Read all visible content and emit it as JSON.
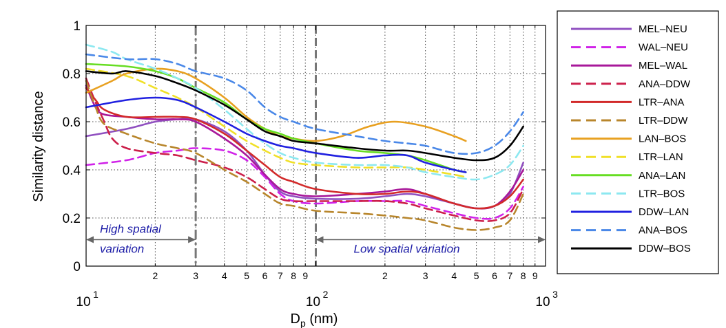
{
  "chart_data": {
    "type": "line",
    "title": "",
    "xlabel": "D_p (nm)",
    "ylabel": "Similarity distance",
    "xscale": "log",
    "xlim": [
      10,
      1000
    ],
    "ylim": [
      0,
      1
    ],
    "grid": true,
    "legend_position": "outside-right",
    "y_ticks": [
      "0",
      "0.2",
      "0.4",
      "0.6",
      "0.8",
      "1"
    ],
    "x_major_ticks": [
      {
        "value": 10,
        "base": "10",
        "exp": "1"
      },
      {
        "value": 100,
        "base": "10",
        "exp": "2"
      },
      {
        "value": 1000,
        "base": "10",
        "exp": "3"
      }
    ],
    "x_minor_ticks": [
      {
        "value": 20,
        "label": "2"
      },
      {
        "value": 30,
        "label": "3"
      },
      {
        "value": 40,
        "label": "4"
      },
      {
        "value": 50,
        "label": "5"
      },
      {
        "value": 60,
        "label": "6"
      },
      {
        "value": 70,
        "label": "7"
      },
      {
        "value": 80,
        "label": "8"
      },
      {
        "value": 90,
        "label": "9"
      },
      {
        "value": 200,
        "label": "2"
      },
      {
        "value": 300,
        "label": "3"
      },
      {
        "value": 400,
        "label": "4"
      },
      {
        "value": 500,
        "label": "5"
      },
      {
        "value": 600,
        "label": "6"
      },
      {
        "value": 700,
        "label": "7"
      },
      {
        "value": 800,
        "label": "8"
      },
      {
        "value": 900,
        "label": "9"
      }
    ],
    "vertical_markers": [
      {
        "x": 30,
        "style": "dash-dot"
      },
      {
        "x": 100,
        "style": "dashed"
      }
    ],
    "annotations": [
      {
        "line1": "High spatial",
        "line2": "variation",
        "x_from": 10,
        "x_to": 30,
        "y": 0.11
      },
      {
        "text": "Low spatial variation",
        "x_from": 100,
        "x_to": 1000,
        "y": 0.11
      }
    ],
    "series": [
      {
        "name": "MEL–NEU",
        "color": "#9050c0",
        "dash": "solid",
        "points": [
          [
            10,
            0.54
          ],
          [
            15,
            0.57
          ],
          [
            20,
            0.6
          ],
          [
            25,
            0.61
          ],
          [
            30,
            0.61
          ],
          [
            40,
            0.56
          ],
          [
            50,
            0.48
          ],
          [
            60,
            0.38
          ],
          [
            70,
            0.31
          ],
          [
            80,
            0.29
          ],
          [
            100,
            0.28
          ],
          [
            150,
            0.28
          ],
          [
            200,
            0.29
          ],
          [
            250,
            0.3
          ],
          [
            300,
            0.29
          ],
          [
            400,
            0.26
          ],
          [
            500,
            0.24
          ],
          [
            600,
            0.25
          ],
          [
            700,
            0.3
          ],
          [
            800,
            0.43
          ]
        ]
      },
      {
        "name": "WAL–NEU",
        "color": "#d022e8",
        "dash": "dashed",
        "points": [
          [
            10,
            0.42
          ],
          [
            15,
            0.44
          ],
          [
            20,
            0.47
          ],
          [
            25,
            0.48
          ],
          [
            30,
            0.49
          ],
          [
            40,
            0.48
          ],
          [
            50,
            0.44
          ],
          [
            60,
            0.37
          ],
          [
            70,
            0.3
          ],
          [
            80,
            0.27
          ],
          [
            100,
            0.26
          ],
          [
            150,
            0.27
          ],
          [
            200,
            0.27
          ],
          [
            250,
            0.27
          ],
          [
            300,
            0.25
          ],
          [
            400,
            0.22
          ],
          [
            500,
            0.2
          ],
          [
            600,
            0.2
          ],
          [
            700,
            0.24
          ],
          [
            800,
            0.33
          ]
        ]
      },
      {
        "name": "MEL–WAL",
        "color": "#a8189a",
        "dash": "solid",
        "points": [
          [
            10,
            0.75
          ],
          [
            11,
            0.66
          ],
          [
            12,
            0.63
          ],
          [
            15,
            0.62
          ],
          [
            20,
            0.61
          ],
          [
            25,
            0.61
          ],
          [
            30,
            0.6
          ],
          [
            40,
            0.53
          ],
          [
            50,
            0.46
          ],
          [
            60,
            0.38
          ],
          [
            70,
            0.32
          ],
          [
            80,
            0.3
          ],
          [
            100,
            0.29
          ],
          [
            150,
            0.3
          ],
          [
            200,
            0.31
          ],
          [
            250,
            0.32
          ],
          [
            300,
            0.3
          ],
          [
            400,
            0.26
          ],
          [
            500,
            0.24
          ],
          [
            600,
            0.25
          ],
          [
            700,
            0.31
          ],
          [
            800,
            0.4
          ]
        ]
      },
      {
        "name": "ANA–DDW",
        "color": "#cc1f4a",
        "dash": "dashed",
        "points": [
          [
            10,
            0.78
          ],
          [
            11,
            0.68
          ],
          [
            12,
            0.6
          ],
          [
            13,
            0.53
          ],
          [
            15,
            0.49
          ],
          [
            20,
            0.47
          ],
          [
            25,
            0.46
          ],
          [
            30,
            0.44
          ],
          [
            40,
            0.41
          ],
          [
            50,
            0.37
          ],
          [
            60,
            0.32
          ],
          [
            70,
            0.28
          ],
          [
            80,
            0.27
          ],
          [
            100,
            0.27
          ],
          [
            150,
            0.27
          ],
          [
            200,
            0.27
          ],
          [
            250,
            0.26
          ],
          [
            300,
            0.24
          ],
          [
            400,
            0.21
          ],
          [
            500,
            0.19
          ],
          [
            600,
            0.19
          ],
          [
            700,
            0.22
          ],
          [
            800,
            0.32
          ]
        ]
      },
      {
        "name": "LTR–ANA",
        "color": "#d22a2a",
        "dash": "solid",
        "points": [
          [
            10,
            0.74
          ],
          [
            11,
            0.69
          ],
          [
            12,
            0.65
          ],
          [
            15,
            0.62
          ],
          [
            20,
            0.62
          ],
          [
            25,
            0.62
          ],
          [
            30,
            0.61
          ],
          [
            40,
            0.55
          ],
          [
            50,
            0.48
          ],
          [
            60,
            0.42
          ],
          [
            70,
            0.37
          ],
          [
            80,
            0.35
          ],
          [
            100,
            0.32
          ],
          [
            150,
            0.3
          ],
          [
            200,
            0.3
          ],
          [
            250,
            0.31
          ],
          [
            300,
            0.3
          ],
          [
            400,
            0.26
          ],
          [
            500,
            0.24
          ],
          [
            600,
            0.25
          ],
          [
            700,
            0.29
          ],
          [
            800,
            0.36
          ]
        ]
      },
      {
        "name": "LTR–DDW",
        "color": "#b8862c",
        "dash": "dashed",
        "points": [
          [
            10,
            0.77
          ],
          [
            11,
            0.66
          ],
          [
            12,
            0.59
          ],
          [
            15,
            0.55
          ],
          [
            20,
            0.51
          ],
          [
            25,
            0.49
          ],
          [
            30,
            0.47
          ],
          [
            40,
            0.4
          ],
          [
            50,
            0.35
          ],
          [
            60,
            0.3
          ],
          [
            70,
            0.26
          ],
          [
            80,
            0.25
          ],
          [
            100,
            0.23
          ],
          [
            150,
            0.22
          ],
          [
            200,
            0.21
          ],
          [
            250,
            0.2
          ],
          [
            300,
            0.19
          ],
          [
            400,
            0.16
          ],
          [
            500,
            0.15
          ],
          [
            600,
            0.16
          ],
          [
            700,
            0.19
          ],
          [
            800,
            0.3
          ]
        ]
      },
      {
        "name": "LAN–BOS",
        "color": "#e8a020",
        "dash": "solid",
        "points": [
          [
            10,
            0.72
          ],
          [
            13,
            0.77
          ],
          [
            15,
            0.8
          ],
          [
            20,
            0.82
          ],
          [
            25,
            0.81
          ],
          [
            30,
            0.78
          ],
          [
            40,
            0.7
          ],
          [
            50,
            0.62
          ],
          [
            60,
            0.57
          ],
          [
            70,
            0.54
          ],
          [
            80,
            0.53
          ],
          [
            100,
            0.52
          ],
          [
            130,
            0.54
          ],
          [
            170,
            0.58
          ],
          [
            220,
            0.6
          ],
          [
            300,
            0.58
          ],
          [
            400,
            0.54
          ],
          [
            450,
            0.52
          ]
        ]
      },
      {
        "name": "LTR–LAN",
        "color": "#f0e028",
        "dash": "dashed",
        "points": [
          [
            10,
            0.82
          ],
          [
            15,
            0.79
          ],
          [
            20,
            0.74
          ],
          [
            25,
            0.7
          ],
          [
            30,
            0.66
          ],
          [
            40,
            0.58
          ],
          [
            50,
            0.52
          ],
          [
            60,
            0.48
          ],
          [
            70,
            0.45
          ],
          [
            80,
            0.43
          ],
          [
            100,
            0.42
          ],
          [
            150,
            0.41
          ],
          [
            200,
            0.41
          ],
          [
            250,
            0.41
          ],
          [
            300,
            0.4
          ],
          [
            400,
            0.38
          ],
          [
            450,
            0.37
          ]
        ]
      },
      {
        "name": "ANA–LAN",
        "color": "#66dd22",
        "dash": "solid",
        "points": [
          [
            10,
            0.84
          ],
          [
            15,
            0.83
          ],
          [
            20,
            0.81
          ],
          [
            25,
            0.78
          ],
          [
            30,
            0.74
          ],
          [
            40,
            0.68
          ],
          [
            50,
            0.61
          ],
          [
            60,
            0.57
          ],
          [
            70,
            0.55
          ],
          [
            80,
            0.53
          ],
          [
            100,
            0.51
          ],
          [
            150,
            0.48
          ],
          [
            200,
            0.47
          ],
          [
            250,
            0.46
          ],
          [
            300,
            0.44
          ],
          [
            400,
            0.4
          ],
          [
            450,
            0.39
          ]
        ]
      },
      {
        "name": "LTR–BOS",
        "color": "#8ce8f0",
        "dash": "dashed",
        "points": [
          [
            10,
            0.92
          ],
          [
            13,
            0.89
          ],
          [
            15,
            0.86
          ],
          [
            20,
            0.82
          ],
          [
            25,
            0.78
          ],
          [
            30,
            0.74
          ],
          [
            40,
            0.65
          ],
          [
            50,
            0.57
          ],
          [
            60,
            0.51
          ],
          [
            70,
            0.47
          ],
          [
            80,
            0.45
          ],
          [
            100,
            0.43
          ],
          [
            150,
            0.42
          ],
          [
            200,
            0.42
          ],
          [
            250,
            0.41
          ],
          [
            300,
            0.39
          ],
          [
            400,
            0.37
          ],
          [
            500,
            0.36
          ],
          [
            600,
            0.38
          ],
          [
            700,
            0.42
          ],
          [
            800,
            0.5
          ]
        ]
      },
      {
        "name": "DDW–LAN",
        "color": "#2020e0",
        "dash": "solid",
        "points": [
          [
            10,
            0.66
          ],
          [
            15,
            0.69
          ],
          [
            20,
            0.7
          ],
          [
            25,
            0.69
          ],
          [
            30,
            0.66
          ],
          [
            40,
            0.6
          ],
          [
            50,
            0.55
          ],
          [
            60,
            0.52
          ],
          [
            70,
            0.5
          ],
          [
            80,
            0.49
          ],
          [
            100,
            0.47
          ],
          [
            150,
            0.45
          ],
          [
            200,
            0.46
          ],
          [
            250,
            0.46
          ],
          [
            300,
            0.43
          ],
          [
            400,
            0.4
          ],
          [
            450,
            0.39
          ]
        ]
      },
      {
        "name": "ANA–BOS",
        "color": "#4a88e8",
        "dash": "dashed",
        "points": [
          [
            10,
            0.88
          ],
          [
            15,
            0.86
          ],
          [
            20,
            0.86
          ],
          [
            25,
            0.84
          ],
          [
            30,
            0.81
          ],
          [
            40,
            0.78
          ],
          [
            50,
            0.73
          ],
          [
            60,
            0.66
          ],
          [
            70,
            0.62
          ],
          [
            80,
            0.6
          ],
          [
            100,
            0.57
          ],
          [
            150,
            0.54
          ],
          [
            200,
            0.52
          ],
          [
            250,
            0.51
          ],
          [
            300,
            0.5
          ],
          [
            400,
            0.47
          ],
          [
            500,
            0.47
          ],
          [
            600,
            0.5
          ],
          [
            700,
            0.56
          ],
          [
            800,
            0.64
          ]
        ]
      },
      {
        "name": "DDW–BOS",
        "color": "#000000",
        "dash": "solid",
        "points": [
          [
            10,
            0.81
          ],
          [
            13,
            0.8
          ],
          [
            15,
            0.81
          ],
          [
            20,
            0.79
          ],
          [
            25,
            0.76
          ],
          [
            30,
            0.73
          ],
          [
            40,
            0.67
          ],
          [
            50,
            0.61
          ],
          [
            60,
            0.56
          ],
          [
            70,
            0.54
          ],
          [
            80,
            0.52
          ],
          [
            100,
            0.51
          ],
          [
            150,
            0.49
          ],
          [
            200,
            0.48
          ],
          [
            250,
            0.48
          ],
          [
            300,
            0.47
          ],
          [
            400,
            0.45
          ],
          [
            500,
            0.44
          ],
          [
            600,
            0.45
          ],
          [
            700,
            0.5
          ],
          [
            800,
            0.58
          ]
        ]
      }
    ]
  }
}
